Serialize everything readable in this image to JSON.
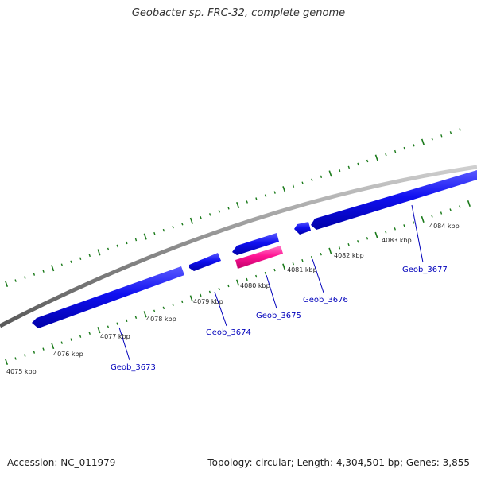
{
  "title": "Geobacter sp. FRC-32, complete genome",
  "footer": {
    "accession_label": "Accession: NC_011979",
    "stats": "Topology: circular; Length: 4,304,501 bp; Genes: 3,855"
  },
  "colors": {
    "backbone": "#8c8c8c",
    "gene_forward": "#0a0af0",
    "gene_reverse": "#ff1493",
    "tick": "#1a7a1a",
    "gene_label": "#0000bb"
  },
  "kbp_ticks": [
    {
      "label": "4075 kbp"
    },
    {
      "label": "4076 kbp"
    },
    {
      "label": "4077 kbp"
    },
    {
      "label": "4078 kbp"
    },
    {
      "label": "4079 kbp"
    },
    {
      "label": "4080 kbp"
    },
    {
      "label": "4081 kbp"
    },
    {
      "label": "4082 kbp"
    },
    {
      "label": "4083 kbp"
    },
    {
      "label": "4084 kbp"
    }
  ],
  "genes": [
    {
      "name": "Geob_3673",
      "strand": "forward"
    },
    {
      "name": "Geob_3674",
      "strand": "forward"
    },
    {
      "name": "Geob_3675",
      "strand": "reverse"
    },
    {
      "name": "Geob_3676",
      "strand": "forward"
    },
    {
      "name": "Geob_3677",
      "strand": "forward"
    }
  ]
}
